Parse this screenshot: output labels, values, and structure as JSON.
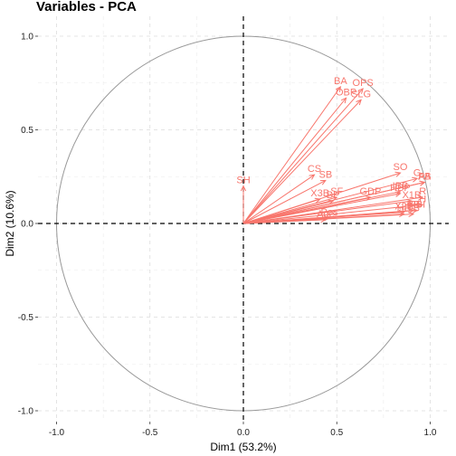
{
  "chart_data": {
    "type": "scatter",
    "subtype": "pca-variable-correlation-circle",
    "title": "Variables - PCA",
    "xlabel": "Dim1 (53.2%)",
    "ylabel": "Dim2 (10.6%)",
    "xlim": [
      -1.0,
      1.0
    ],
    "ylim": [
      -1.0,
      1.0
    ],
    "x_ticks": [
      -1.0,
      -0.5,
      0.0,
      0.5,
      1.0
    ],
    "x_tick_labels": [
      "-1.0",
      "-0.5",
      "0.0",
      "0.5",
      "1.0"
    ],
    "y_ticks": [
      -1.0,
      -0.5,
      0.0,
      0.5,
      1.0
    ],
    "y_tick_labels": [
      "-1.0",
      "-0.5",
      "0.0",
      "0.5",
      "1.0"
    ],
    "grid": true,
    "grid_style": "dashed",
    "unit_circle": true,
    "reference_lines": [
      {
        "axis": "x",
        "value": 0
      },
      {
        "axis": "y",
        "value": 0
      }
    ],
    "arrow_color": "#F8766D",
    "circle_color": "#999999",
    "variables": [
      {
        "name": "SH",
        "x": 0.0,
        "y": 0.2
      },
      {
        "name": "CS",
        "x": 0.38,
        "y": 0.26
      },
      {
        "name": "SB",
        "x": 0.44,
        "y": 0.23
      },
      {
        "name": "SF",
        "x": 0.5,
        "y": 0.14
      },
      {
        "name": "X3B",
        "x": 0.41,
        "y": 0.13
      },
      {
        "name": "BP",
        "x": 0.48,
        "y": 0.12
      },
      {
        "name": "GDP",
        "x": 0.68,
        "y": 0.14
      },
      {
        "name": "SO",
        "x": 0.84,
        "y": 0.27
      },
      {
        "name": "G",
        "x": 0.93,
        "y": 0.24
      },
      {
        "name": "AB",
        "x": 0.97,
        "y": 0.22
      },
      {
        "name": "PA",
        "x": 0.97,
        "y": 0.22
      },
      {
        "name": "IBB",
        "x": 0.84,
        "y": 0.17
      },
      {
        "name": "HBP",
        "x": 0.84,
        "y": 0.16
      },
      {
        "name": "X1B",
        "x": 0.9,
        "y": 0.12
      },
      {
        "name": "R",
        "x": 0.96,
        "y": 0.14
      },
      {
        "name": "H",
        "x": 0.96,
        "y": 0.1
      },
      {
        "name": "BB",
        "x": 0.91,
        "y": 0.07
      },
      {
        "name": "RBI",
        "x": 0.93,
        "y": 0.07
      },
      {
        "name": "X2B",
        "x": 0.86,
        "y": 0.06
      },
      {
        "name": "HR",
        "x": 0.86,
        "y": 0.05
      },
      {
        "name": "TB",
        "x": 0.91,
        "y": 0.05
      },
      {
        "name": "Age",
        "x": 0.44,
        "y": 0.02
      },
      {
        "name": "Pos",
        "x": 0.46,
        "y": 0.03
      },
      {
        "name": "OBP",
        "x": 0.55,
        "y": 0.67
      },
      {
        "name": "SLG",
        "x": 0.63,
        "y": 0.66
      },
      {
        "name": "BA",
        "x": 0.52,
        "y": 0.73
      },
      {
        "name": "OPS",
        "x": 0.64,
        "y": 0.72
      }
    ]
  }
}
